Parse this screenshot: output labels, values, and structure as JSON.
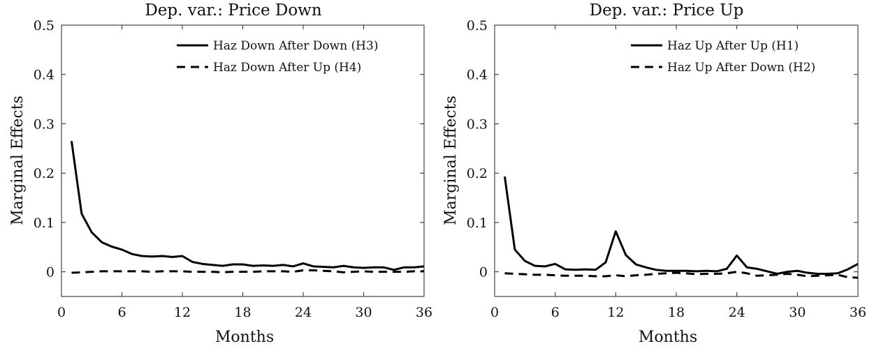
{
  "chart_data": [
    {
      "type": "line",
      "title": "Dep. var.: Price Down",
      "xlabel": "Months",
      "ylabel": "Marginal Effects",
      "xlim": [
        0,
        36
      ],
      "ylim": [
        -0.05,
        0.5
      ],
      "xticks": [
        "0",
        "6",
        "12",
        "18",
        "24",
        "30",
        "36"
      ],
      "yticks": [
        "0",
        "0.1",
        "0.2",
        "0.3",
        "0.4",
        "0.5"
      ],
      "legend": "top-right",
      "grid": false,
      "x": [
        1,
        2,
        3,
        4,
        5,
        6,
        7,
        8,
        9,
        10,
        11,
        12,
        13,
        14,
        15,
        16,
        17,
        18,
        19,
        20,
        21,
        22,
        23,
        24,
        25,
        26,
        27,
        28,
        29,
        30,
        31,
        32,
        33,
        34,
        35,
        36
      ],
      "series": [
        {
          "name": "Haz Down After Down (H3)",
          "style": "solid",
          "values": [
            0.265,
            0.118,
            0.08,
            0.06,
            0.051,
            0.045,
            0.036,
            0.032,
            0.031,
            0.032,
            0.03,
            0.032,
            0.02,
            0.016,
            0.014,
            0.012,
            0.015,
            0.015,
            0.012,
            0.013,
            0.012,
            0.014,
            0.011,
            0.017,
            0.011,
            0.01,
            0.009,
            0.012,
            0.009,
            0.008,
            0.009,
            0.009,
            0.004,
            0.009,
            0.009,
            0.011
          ]
        },
        {
          "name": "Haz Down After Up (H4)",
          "style": "dashed",
          "values": [
            -0.002,
            -0.001,
            0.0,
            0.001,
            0.001,
            0.001,
            0.001,
            0.001,
            0.0,
            0.001,
            0.001,
            0.001,
            0.0,
            0.0,
            0.0,
            -0.001,
            0.0,
            0.0,
            0.0,
            0.001,
            0.001,
            0.001,
            0.0,
            0.003,
            0.003,
            0.002,
            0.001,
            -0.001,
            0.0,
            0.001,
            0.0,
            0.0,
            0.0,
            0.0,
            0.001,
            0.001
          ]
        }
      ]
    },
    {
      "type": "line",
      "title": "Dep. var.: Price Up",
      "xlabel": "Months",
      "ylabel": "Marginal Effects",
      "xlim": [
        0,
        36
      ],
      "ylim": [
        -0.05,
        0.5
      ],
      "xticks": [
        "0",
        "6",
        "12",
        "18",
        "24",
        "30",
        "36"
      ],
      "yticks": [
        "0",
        "0.1",
        "0.2",
        "0.3",
        "0.4",
        "0.5"
      ],
      "legend": "top-right",
      "grid": false,
      "x": [
        1,
        2,
        3,
        4,
        5,
        6,
        7,
        8,
        9,
        10,
        11,
        12,
        13,
        14,
        15,
        16,
        17,
        18,
        19,
        20,
        21,
        22,
        23,
        24,
        25,
        26,
        27,
        28,
        29,
        30,
        31,
        32,
        33,
        34,
        35,
        36
      ],
      "series": [
        {
          "name": "Haz Up After Up (H1)",
          "style": "solid",
          "values": [
            0.193,
            0.045,
            0.022,
            0.012,
            0.011,
            0.016,
            0.005,
            0.004,
            0.005,
            0.004,
            0.019,
            0.082,
            0.034,
            0.015,
            0.009,
            0.004,
            0.002,
            0.002,
            0.002,
            0.001,
            0.002,
            0.001,
            0.006,
            0.033,
            0.009,
            0.006,
            0.001,
            -0.004,
            0.0,
            0.002,
            -0.002,
            -0.004,
            -0.004,
            -0.003,
            0.005,
            0.016
          ]
        },
        {
          "name": "Haz Up After Down (H2)",
          "style": "dashed",
          "values": [
            -0.003,
            -0.004,
            -0.005,
            -0.006,
            -0.006,
            -0.007,
            -0.008,
            -0.008,
            -0.008,
            -0.009,
            -0.009,
            -0.007,
            -0.009,
            -0.007,
            -0.006,
            -0.004,
            -0.003,
            -0.002,
            -0.003,
            -0.005,
            -0.004,
            -0.004,
            -0.003,
            0.0,
            -0.003,
            -0.008,
            -0.007,
            -0.006,
            -0.004,
            -0.006,
            -0.009,
            -0.008,
            -0.007,
            -0.006,
            -0.011,
            -0.012
          ]
        }
      ]
    }
  ]
}
